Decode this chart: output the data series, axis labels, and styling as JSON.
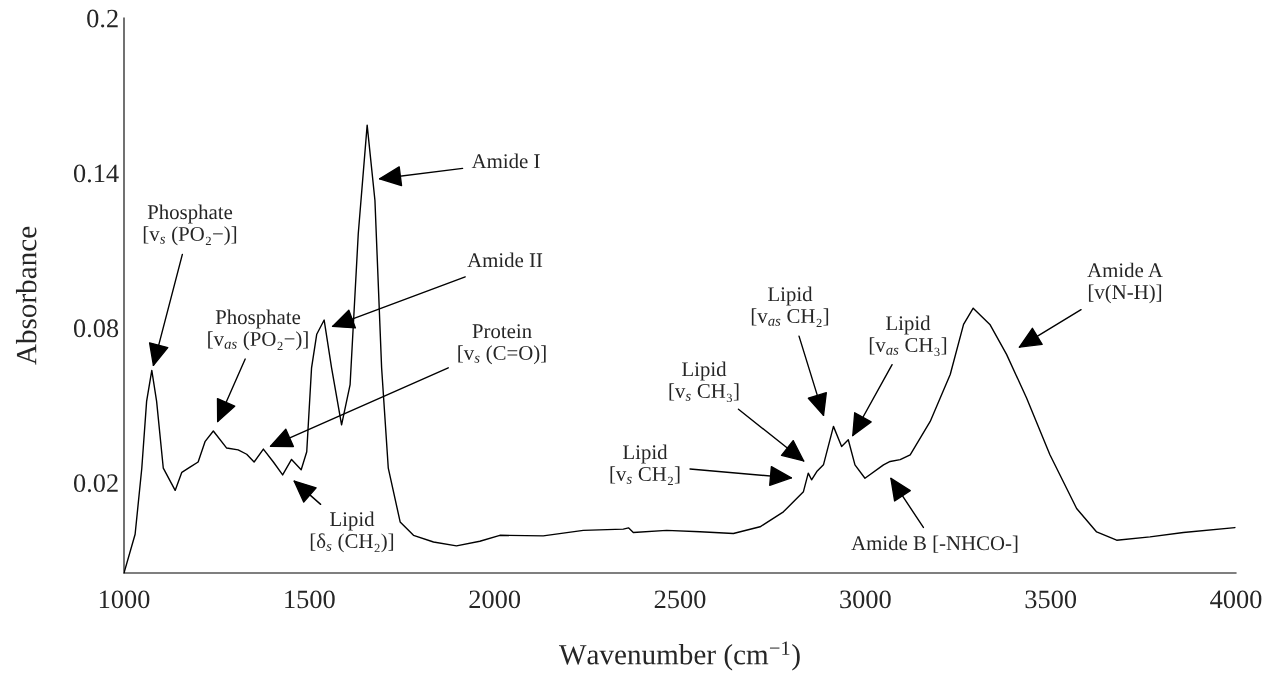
{
  "chart_data": {
    "type": "line",
    "xlabel": "Wavenumber (cm$^{−1}$)",
    "ylabel": "Absorbance",
    "xlim": [
      1000,
      4000
    ],
    "ylim": [
      -0.015,
      0.2
    ],
    "xticks": [
      1000,
      1500,
      2000,
      2500,
      3000,
      3500,
      4000
    ],
    "yticks": [
      0.02,
      0.08,
      0.14,
      0.2
    ],
    "grid": false,
    "legend": false,
    "marker": "none",
    "line_style": "solid",
    "series": [
      {
        "color": "#000000",
        "x": [
          1000,
          1030,
          1048,
          1061,
          1075,
          1088,
          1106,
          1138,
          1156,
          1178,
          1200,
          1219,
          1241,
          1277,
          1308,
          1331,
          1351,
          1376,
          1403,
          1428,
          1452,
          1478,
          1493,
          1506,
          1520,
          1540,
          1560,
          1587,
          1610,
          1632,
          1656,
          1677,
          1695,
          1713,
          1745,
          1781,
          1835,
          1897,
          1960,
          2014,
          2131,
          2239,
          2347,
          2361,
          2374,
          2464,
          2554,
          2644,
          2716,
          2779,
          2833,
          2846,
          2855,
          2869,
          2887,
          2914,
          2936,
          2954,
          2972,
          2999,
          3049,
          3067,
          3094,
          3121,
          3175,
          3229,
          3265,
          3291,
          3336,
          3381,
          3435,
          3498,
          3570,
          3624,
          3678,
          3768,
          3858,
          3997
        ],
        "values": [
          -0.015,
          0.0,
          0.0256,
          0.0515,
          0.0635,
          0.0515,
          0.0256,
          0.017,
          0.024,
          0.026,
          0.028,
          0.036,
          0.04,
          0.0334,
          0.0327,
          0.031,
          0.028,
          0.033,
          0.028,
          0.023,
          0.029,
          0.025,
          0.032,
          0.0645,
          0.0775,
          0.083,
          0.0645,
          0.0424,
          0.058,
          0.1164,
          0.1585,
          0.1293,
          0.0645,
          0.0256,
          0.0048,
          -0.0004,
          -0.003,
          -0.0045,
          -0.0027,
          -0.0004,
          -0.0006,
          0.0015,
          0.002,
          0.0025,
          0.0007,
          0.0015,
          0.001,
          0.0003,
          0.0029,
          0.0087,
          0.0165,
          0.0237,
          0.0211,
          0.0243,
          0.0269,
          0.0418,
          0.034,
          0.0366,
          0.0269,
          0.0217,
          0.0269,
          0.0282,
          0.0289,
          0.0308,
          0.0437,
          0.0619,
          0.0813,
          0.0876,
          0.0813,
          0.0697,
          0.0528,
          0.0308,
          0.01,
          0.0009,
          -0.0023,
          -0.001,
          0.0007,
          0.0026
        ]
      }
    ],
    "annotations": [
      "Phosphate\n[v$_{s}$ (PO₂−)]",
      "Phosphate\n[v$_{as}$ (PO₂−)]",
      "Lipid\n[δ$_{s}$ (CH₂)]",
      "Protein\n[v$_{s}$ (C=O)]",
      "Amide II",
      "Amide I",
      "Lipid\n[v$_{s}$ CH₂]",
      "Lipid\n[v$_{s}$ CH₃]",
      "Lipid\n[v$_{as}$ CH₂]",
      "Lipid\n[v$_{as}$ CH₃]",
      "Amide B [-NHCO-]",
      "Amide A\n[v(N-H)]"
    ]
  }
}
